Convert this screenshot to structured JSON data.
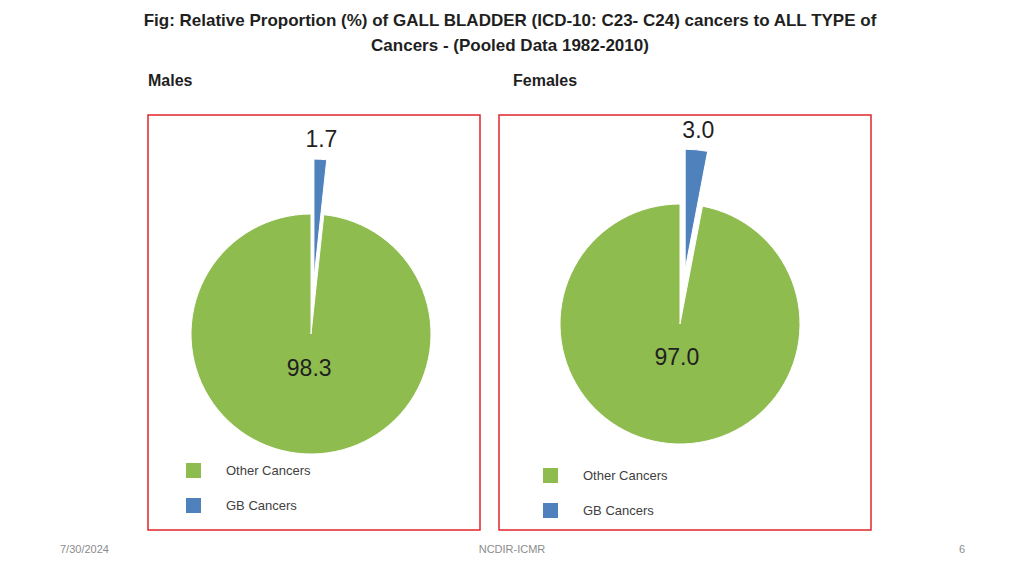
{
  "title": "Fig: Relative Proportion (%) of GALL BLADDER (ICD-10: C23- C24) cancers to ALL TYPE of Cancers - (Pooled Data 1982-2010)",
  "footer": {
    "date": "7/30/2024",
    "source": "NCDIR-ICMR",
    "page": 6
  },
  "chart_data": [
    {
      "type": "pie",
      "title": "Males",
      "categories": [
        "Other Cancers",
        "GB Cancers"
      ],
      "values": [
        98.3,
        1.7
      ],
      "colors": [
        "#8fbc4f",
        "#4f81bd"
      ],
      "data_labels": true,
      "legend": "bottom"
    },
    {
      "type": "pie",
      "title": "Females",
      "categories": [
        "Other Cancers",
        "GB Cancers"
      ],
      "values": [
        97.0,
        3.0
      ],
      "value_labels": [
        "97.0",
        "3.0"
      ],
      "colors": [
        "#8fbc4f",
        "#4f81bd"
      ],
      "data_labels": true,
      "legend": "bottom"
    }
  ]
}
